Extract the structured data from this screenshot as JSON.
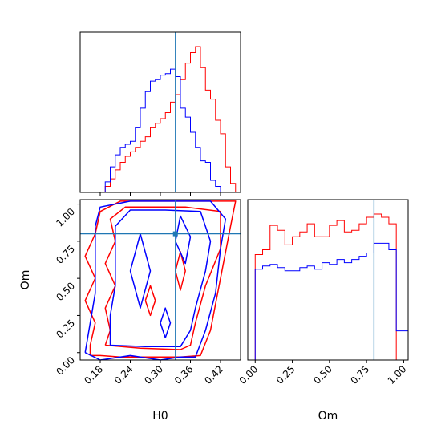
{
  "chart_data": {
    "type": "corner",
    "parameters": [
      "H0",
      "Om"
    ],
    "truth": {
      "H0": 0.33,
      "Om": 0.8,
      "color": "#1f77b4"
    },
    "series_colors": [
      "#ff0000",
      "#0000ff"
    ],
    "axes": {
      "H0": {
        "label": "H0",
        "range": [
          0.14,
          0.46
        ],
        "ticks": [
          0.18,
          0.24,
          0.3,
          0.36,
          0.42
        ],
        "tick_labels": [
          "0.18",
          "0.24",
          "0.30",
          "0.36",
          "0.42"
        ]
      },
      "Om": {
        "label": "Om",
        "range": [
          -0.05,
          1.03
        ],
        "ticks": [
          0.0,
          0.25,
          0.5,
          0.75,
          1.0
        ],
        "tick_labels": [
          "0.00",
          "0.25",
          "0.50",
          "0.75",
          "1.00"
        ]
      }
    },
    "hist_H0": {
      "bins": [
        0.15,
        0.16,
        0.17,
        0.18,
        0.19,
        0.2,
        0.21,
        0.22,
        0.23,
        0.24,
        0.25,
        0.26,
        0.27,
        0.28,
        0.29,
        0.3,
        0.31,
        0.32,
        0.33,
        0.34,
        0.35,
        0.36,
        0.37,
        0.38,
        0.39,
        0.4,
        0.41,
        0.42,
        0.43,
        0.44,
        0.45
      ],
      "series": [
        {
          "counts": [
            0,
            0,
            0,
            0,
            4,
            9,
            15,
            20,
            24,
            27,
            30,
            34,
            37,
            43,
            46,
            49,
            53,
            60,
            65,
            75,
            86,
            93,
            97,
            83,
            68,
            62,
            48,
            39,
            17,
            6
          ]
        },
        {
          "counts": [
            0,
            0,
            0,
            0,
            7,
            17,
            25,
            30,
            32,
            34,
            43,
            56,
            67,
            74,
            75,
            78,
            79,
            82,
            77,
            56,
            50,
            40,
            30,
            21,
            20,
            8,
            4,
            0,
            0,
            0
          ]
        }
      ]
    },
    "hist_Om": {
      "bins": [
        -0.05,
        0.0,
        0.05,
        0.1,
        0.15,
        0.2,
        0.25,
        0.3,
        0.35,
        0.4,
        0.45,
        0.5,
        0.55,
        0.6,
        0.65,
        0.7,
        0.75,
        0.8,
        0.85,
        0.9,
        0.95,
        1.0,
        1.03
      ],
      "series": [
        {
          "counts": [
            0,
            65,
            68,
            83,
            80,
            71,
            76,
            79,
            84,
            76,
            76,
            83,
            86,
            79,
            80,
            84,
            88,
            90,
            88,
            84,
            0,
            0
          ]
        },
        {
          "counts": [
            0,
            56,
            58,
            59,
            57,
            55,
            55,
            57,
            58,
            56,
            60,
            59,
            62,
            60,
            62,
            64,
            66,
            72,
            72,
            68,
            18,
            18
          ]
        }
      ]
    },
    "contours_red": [
      [
        [
          0.16,
          -0.02
        ],
        [
          0.18,
          -0.02
        ],
        [
          0.22,
          -0.03
        ],
        [
          0.28,
          -0.03
        ],
        [
          0.34,
          -0.03
        ],
        [
          0.38,
          -0.02
        ],
        [
          0.4,
          0.15
        ],
        [
          0.42,
          0.5
        ],
        [
          0.44,
          0.85
        ],
        [
          0.45,
          1.02
        ],
        [
          0.38,
          1.02
        ],
        [
          0.3,
          1.02
        ],
        [
          0.22,
          1.02
        ],
        [
          0.18,
          0.95
        ],
        [
          0.17,
          0.8
        ],
        [
          0.15,
          0.65
        ],
        [
          0.17,
          0.5
        ],
        [
          0.15,
          0.35
        ],
        [
          0.17,
          0.2
        ],
        [
          0.16,
          0.05
        ],
        [
          0.16,
          -0.02
        ]
      ],
      [
        [
          0.19,
          0.05
        ],
        [
          0.26,
          0.03
        ],
        [
          0.34,
          0.02
        ],
        [
          0.36,
          0.05
        ],
        [
          0.37,
          0.2
        ],
        [
          0.39,
          0.45
        ],
        [
          0.42,
          0.7
        ],
        [
          0.42,
          0.95
        ],
        [
          0.35,
          0.98
        ],
        [
          0.28,
          0.98
        ],
        [
          0.23,
          0.98
        ],
        [
          0.2,
          0.9
        ],
        [
          0.21,
          0.75
        ],
        [
          0.19,
          0.6
        ],
        [
          0.21,
          0.45
        ],
        [
          0.19,
          0.3
        ],
        [
          0.2,
          0.15
        ],
        [
          0.19,
          0.05
        ]
      ],
      [
        [
          0.27,
          0.35
        ],
        [
          0.28,
          0.25
        ],
        [
          0.29,
          0.35
        ],
        [
          0.28,
          0.45
        ],
        [
          0.27,
          0.35
        ]
      ],
      [
        [
          0.33,
          0.55
        ],
        [
          0.34,
          0.42
        ],
        [
          0.35,
          0.55
        ],
        [
          0.34,
          0.68
        ],
        [
          0.33,
          0.55
        ]
      ]
    ],
    "contours_blue": [
      [
        [
          0.15,
          0.0
        ],
        [
          0.18,
          -0.05
        ],
        [
          0.24,
          -0.02
        ],
        [
          0.3,
          -0.05
        ],
        [
          0.34,
          -0.03
        ],
        [
          0.37,
          -0.03
        ],
        [
          0.39,
          0.15
        ],
        [
          0.41,
          0.4
        ],
        [
          0.42,
          0.7
        ],
        [
          0.43,
          0.9
        ],
        [
          0.4,
          1.02
        ],
        [
          0.32,
          1.02
        ],
        [
          0.24,
          1.02
        ],
        [
          0.18,
          0.98
        ],
        [
          0.17,
          0.85
        ],
        [
          0.17,
          0.6
        ],
        [
          0.17,
          0.4
        ],
        [
          0.16,
          0.2
        ],
        [
          0.15,
          0.0
        ]
      ],
      [
        [
          0.2,
          0.05
        ],
        [
          0.27,
          0.04
        ],
        [
          0.34,
          0.04
        ],
        [
          0.36,
          0.15
        ],
        [
          0.37,
          0.3
        ],
        [
          0.39,
          0.55
        ],
        [
          0.4,
          0.75
        ],
        [
          0.38,
          0.95
        ],
        [
          0.31,
          0.96
        ],
        [
          0.24,
          0.96
        ],
        [
          0.21,
          0.85
        ],
        [
          0.21,
          0.65
        ],
        [
          0.21,
          0.45
        ],
        [
          0.2,
          0.25
        ],
        [
          0.2,
          0.05
        ]
      ],
      [
        [
          0.24,
          0.55
        ],
        [
          0.26,
          0.3
        ],
        [
          0.28,
          0.55
        ],
        [
          0.26,
          0.8
        ],
        [
          0.24,
          0.55
        ]
      ],
      [
        [
          0.3,
          0.2
        ],
        [
          0.31,
          0.1
        ],
        [
          0.32,
          0.2
        ],
        [
          0.31,
          0.3
        ],
        [
          0.3,
          0.2
        ]
      ],
      [
        [
          0.33,
          0.75
        ],
        [
          0.35,
          0.6
        ],
        [
          0.36,
          0.78
        ],
        [
          0.34,
          0.92
        ],
        [
          0.33,
          0.75
        ]
      ]
    ]
  }
}
